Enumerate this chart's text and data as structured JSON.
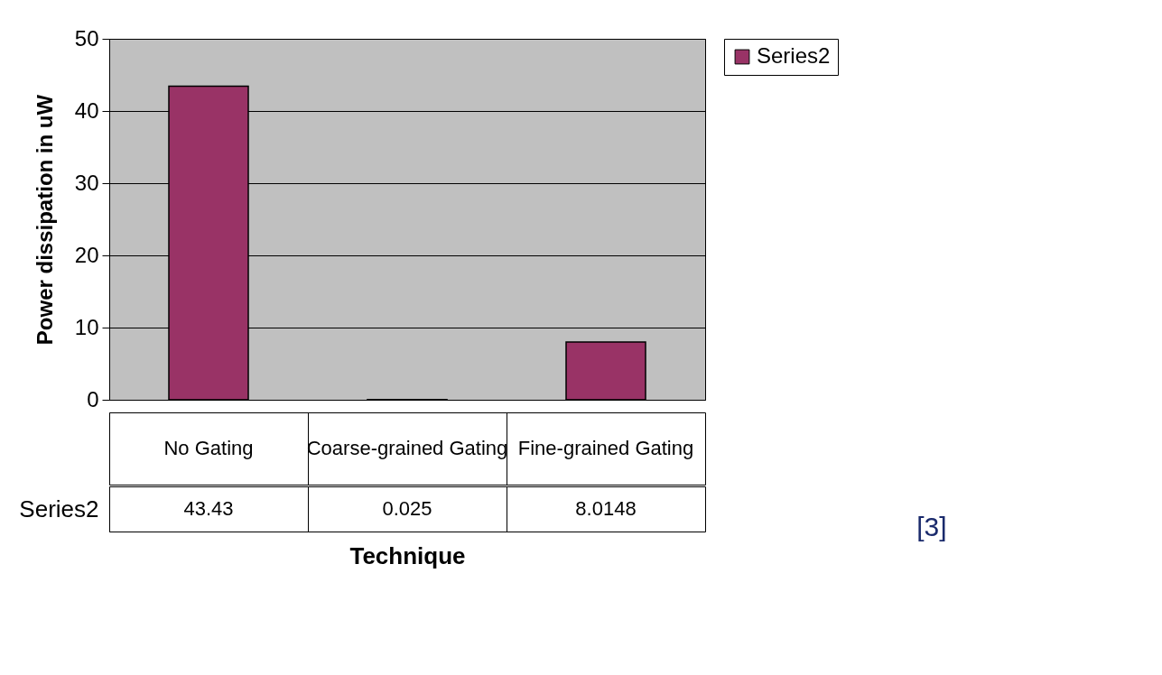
{
  "chart_data": {
    "type": "bar",
    "xlabel": "Technique",
    "ylabel": "Power dissipation in uW",
    "categories": [
      "No Gating",
      "Coarse-grained Gating",
      "Fine-grained Gating"
    ],
    "series": [
      {
        "name": "Series2",
        "color": "#993366",
        "values": [
          43.43,
          0.025,
          8.0148
        ]
      }
    ],
    "ylim": [
      0,
      50
    ],
    "yticks": [
      0,
      10,
      20,
      30,
      40,
      50
    ],
    "grid": "y",
    "legend": "right",
    "data_labels": true,
    "annotations": [
      "[3]"
    ]
  }
}
